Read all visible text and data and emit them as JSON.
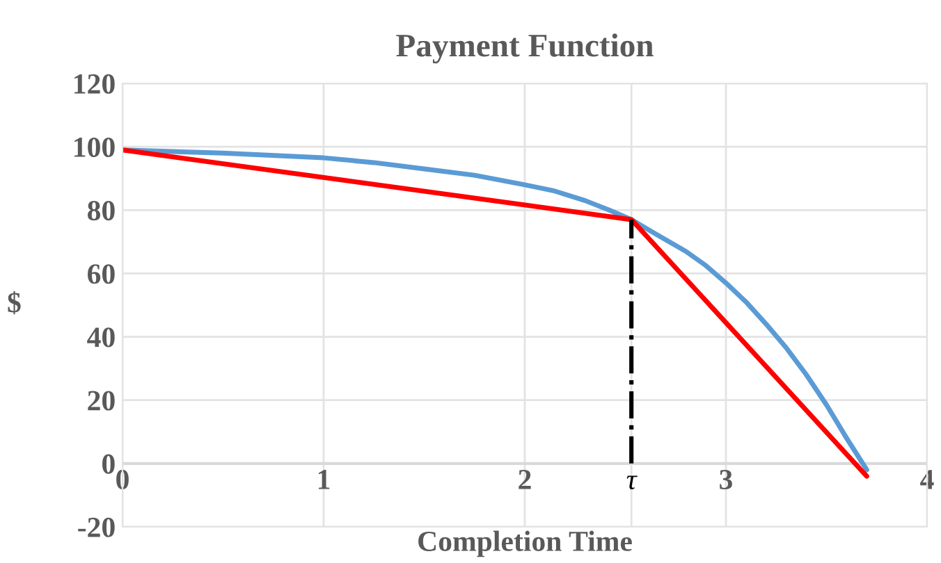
{
  "chart_data": {
    "type": "line",
    "title": "Payment Function",
    "xlabel": "Completion Time",
    "ylabel": "$",
    "xlim": [
      0,
      4
    ],
    "xticks": [
      0,
      1,
      2,
      {
        "value": 2.53,
        "label": "τ"
      },
      3,
      4
    ],
    "ylim": [
      -20,
      120
    ],
    "yticks": [
      -20,
      0,
      20,
      40,
      60,
      80,
      100,
      120
    ],
    "grid": true,
    "series": [
      {
        "color": "#5b9bd5",
        "x": [
          0,
          0.5,
          1,
          1.25,
          1.5,
          1.75,
          2,
          2.15,
          2.3,
          2.42,
          2.53,
          2.65,
          2.8,
          2.9,
          3,
          3.1,
          3.2,
          3.3,
          3.4,
          3.5,
          3.6,
          3.7
        ],
        "values": [
          99,
          98,
          96.5,
          95,
          93,
          91,
          88,
          86,
          83,
          80,
          77,
          72.5,
          67,
          62.5,
          57,
          51,
          44,
          36.5,
          28,
          18.5,
          8,
          -2
        ]
      },
      {
        "color": "#ff0000",
        "x": [
          0,
          2.53,
          3.7
        ],
        "values": [
          99,
          77,
          -4
        ]
      },
      {
        "color": "#000000",
        "line_style": "dashdot",
        "x": [
          2.53,
          2.53
        ],
        "values": [
          0,
          77
        ]
      }
    ]
  }
}
